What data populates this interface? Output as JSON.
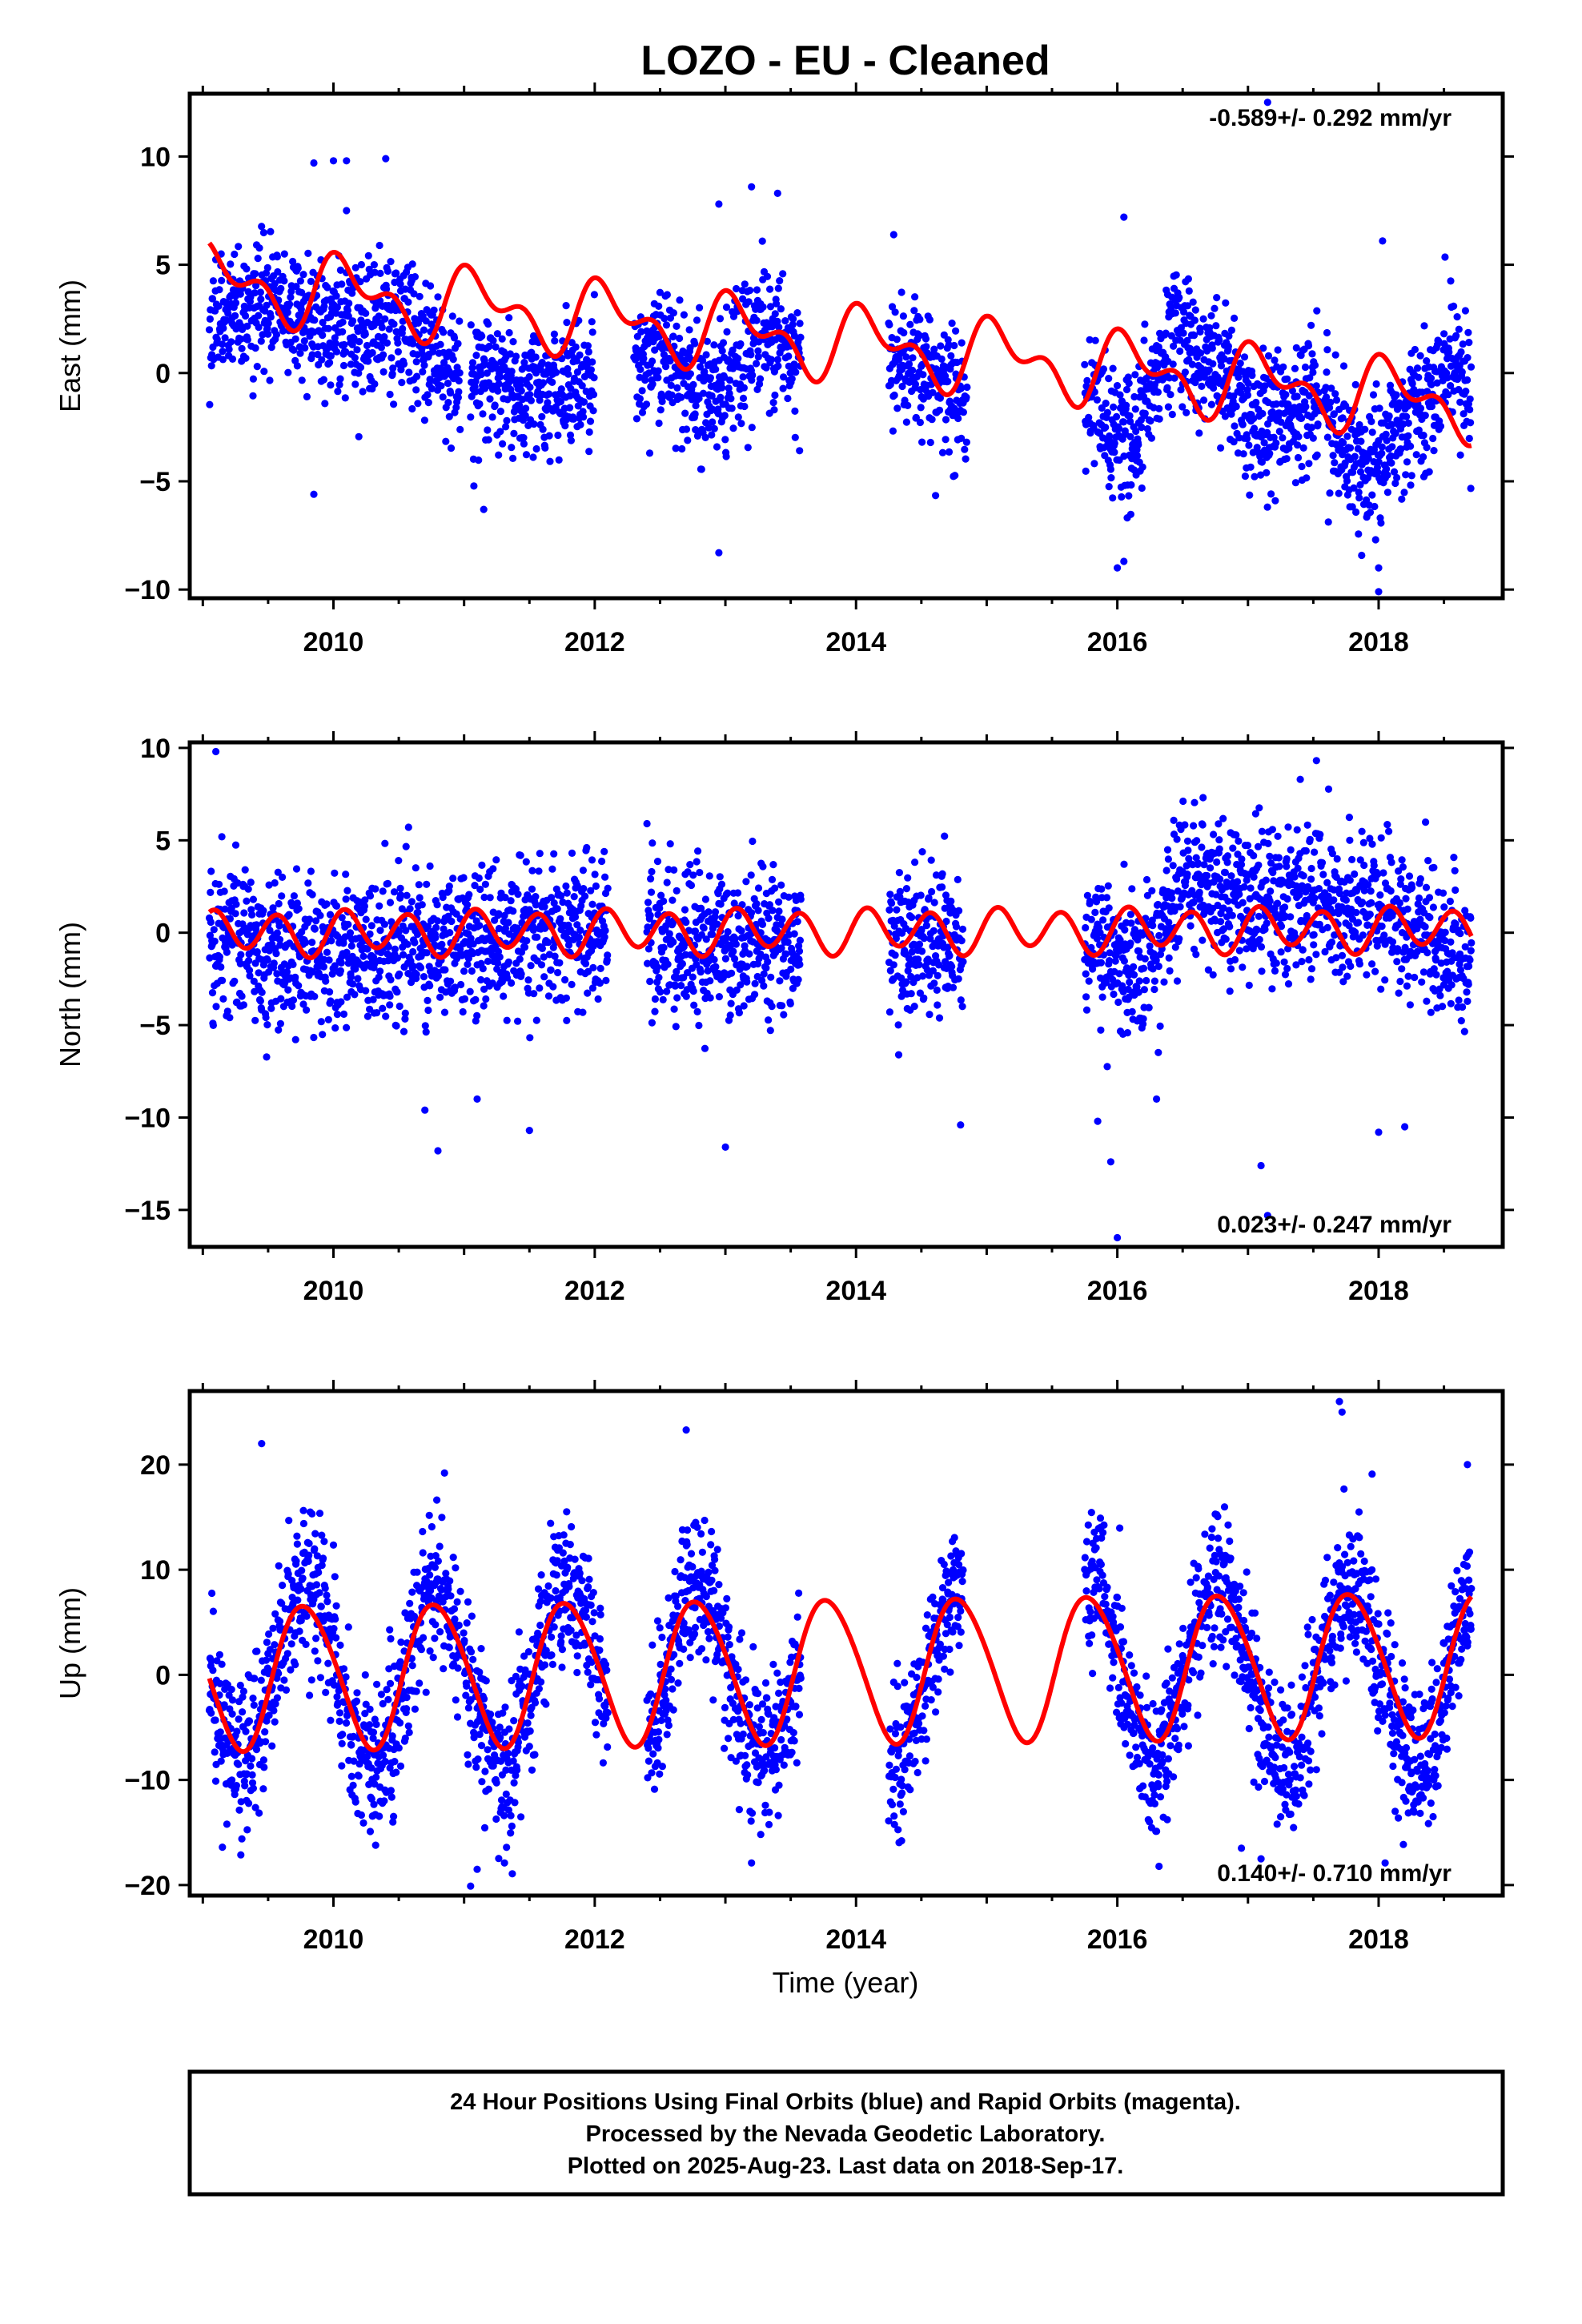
{
  "title": "LOZO  - EU - Cleaned",
  "xlabel": "Time (year)",
  "colors": {
    "points": "#0000ff",
    "fit": "#ff0000",
    "frame": "#000000"
  },
  "footer": {
    "line1": "24 Hour Positions Using Final Orbits (blue) and Rapid Orbits (magenta).",
    "line2": "Processed by the Nevada Geodetic Laboratory.",
    "line3": "Plotted on 2025-Aug-23. Last data on 2018-Sep-17."
  },
  "chart_data": [
    {
      "type": "scatter",
      "component": "east",
      "ylabel": "East (mm)",
      "rate_text": "-0.589+/- 0.292 mm/yr",
      "rate_position": "top-right",
      "xlim": [
        2008.9,
        2018.95
      ],
      "ylim": [
        -10.4,
        12.9
      ],
      "yticks": [
        -10,
        -5,
        0,
        5,
        10
      ],
      "xticks": [
        2010,
        2012,
        2014,
        2016,
        2018
      ],
      "grid": false,
      "data_segments": [
        [
          2009.05,
          2010.97
        ],
        [
          2011.05,
          2012.0
        ],
        [
          2012.3,
          2013.58
        ],
        [
          2014.25,
          2014.85
        ],
        [
          2015.75,
          2017.55
        ],
        [
          2017.58,
          2018.71
        ]
      ],
      "drift_by_year": [
        [
          2009.0,
          2.2
        ],
        [
          2009.5,
          3.5
        ],
        [
          2010.0,
          1.8
        ],
        [
          2010.5,
          2.2
        ],
        [
          2011.0,
          -0.3
        ],
        [
          2011.5,
          -0.5
        ],
        [
          2012.0,
          -0.6
        ],
        [
          2012.5,
          1.0
        ],
        [
          2012.9,
          -1.2
        ],
        [
          2013.3,
          2.2
        ],
        [
          2013.6,
          0.6
        ],
        [
          2014.3,
          0.8
        ],
        [
          2014.8,
          -1.0
        ],
        [
          2015.8,
          -1.5
        ],
        [
          2016.1,
          -3.8
        ],
        [
          2016.4,
          2.0
        ],
        [
          2016.9,
          -0.5
        ],
        [
          2017.1,
          -2.6
        ],
        [
          2017.5,
          -1.0
        ],
        [
          2017.9,
          -4.5
        ],
        [
          2018.2,
          -2.5
        ],
        [
          2018.5,
          0.2
        ],
        [
          2018.71,
          -0.8
        ]
      ],
      "scatter_sd_mm": 1.5,
      "fit_model": {
        "trend_mm_per_yr": -0.589,
        "offset_mm": 1.35,
        "annual_amp": 1.3,
        "annual_phase": 0.9,
        "semiannual_amp": 0.9,
        "semiannual_phase": 1.9
      },
      "fit_span": [
        2009.05,
        2018.71
      ],
      "outliers": [
        [
          2009.85,
          9.7
        ],
        [
          2010.0,
          9.8
        ],
        [
          2010.1,
          9.8
        ],
        [
          2010.4,
          9.9
        ],
        [
          2010.1,
          7.5
        ],
        [
          2012.95,
          7.8
        ],
        [
          2013.2,
          8.6
        ],
        [
          2013.4,
          8.3
        ],
        [
          2016.05,
          7.2
        ],
        [
          2017.15,
          12.5
        ],
        [
          2018.03,
          6.1
        ],
        [
          2009.85,
          -5.6
        ],
        [
          2011.15,
          -6.3
        ],
        [
          2012.95,
          -8.3
        ],
        [
          2016.05,
          -8.7
        ],
        [
          2016.0,
          -9.0
        ],
        [
          2018.0,
          -10.1
        ],
        [
          2018.0,
          -9.0
        ]
      ]
    },
    {
      "type": "scatter",
      "component": "north",
      "ylabel": "North (mm)",
      "rate_text": "0.023+/- 0.247 mm/yr",
      "rate_position": "bottom-right",
      "xlim": [
        2008.9,
        2018.95
      ],
      "ylim": [
        -17.0,
        10.3
      ],
      "yticks": [
        -15,
        -10,
        -5,
        0,
        5,
        10
      ],
      "xticks": [
        2010,
        2012,
        2014,
        2016,
        2018
      ],
      "grid": false,
      "data_segments": [
        [
          2009.05,
          2012.1
        ],
        [
          2012.4,
          2013.58
        ],
        [
          2014.25,
          2014.82
        ],
        [
          2015.75,
          2018.71
        ]
      ],
      "drift_by_year": [
        [
          2009.0,
          -0.5
        ],
        [
          2010.0,
          -1.0
        ],
        [
          2011.0,
          -0.5
        ],
        [
          2012.0,
          0.3
        ],
        [
          2013.0,
          -1.0
        ],
        [
          2014.5,
          -0.5
        ],
        [
          2015.8,
          -1.0
        ],
        [
          2016.2,
          -1.5
        ],
        [
          2016.5,
          3.0
        ],
        [
          2017.0,
          1.5
        ],
        [
          2017.5,
          1.5
        ],
        [
          2018.0,
          1.3
        ],
        [
          2018.5,
          -0.5
        ],
        [
          2018.71,
          -1.0
        ]
      ],
      "scatter_sd_mm": 2.0,
      "fit_model": {
        "trend_mm_per_yr": 0.023,
        "offset_mm": 0.1,
        "annual_amp": 0.3,
        "annual_phase": 0.0,
        "semiannual_amp": 1.1,
        "semiannual_phase": 0.6
      },
      "fit_span": [
        2009.05,
        2018.71
      ],
      "outliers": [
        [
          2009.1,
          9.8
        ],
        [
          2012.4,
          5.9
        ],
        [
          2017.4,
          8.3
        ],
        [
          2010.8,
          -11.8
        ],
        [
          2013.0,
          -11.6
        ],
        [
          2016.0,
          -16.5
        ],
        [
          2017.1,
          -12.6
        ],
        [
          2017.15,
          -15.3
        ],
        [
          2015.85,
          -10.2
        ],
        [
          2015.95,
          -12.4
        ],
        [
          2016.3,
          -9.0
        ],
        [
          2018.0,
          -10.8
        ],
        [
          2018.2,
          -10.5
        ],
        [
          2011.5,
          -10.7
        ],
        [
          2014.8,
          -10.4
        ],
        [
          2010.7,
          -9.6
        ],
        [
          2011.1,
          -9.0
        ]
      ]
    },
    {
      "type": "scatter",
      "component": "up",
      "ylabel": "Up (mm)",
      "rate_text": "0.140+/- 0.710 mm/yr",
      "rate_position": "bottom-right",
      "xlim": [
        2008.9,
        2018.95
      ],
      "ylim": [
        -21.0,
        27.0
      ],
      "yticks": [
        -20,
        -10,
        0,
        10,
        20
      ],
      "xticks": [
        2010,
        2012,
        2014,
        2016,
        2018
      ],
      "grid": false,
      "data_segments": [
        [
          2009.05,
          2012.1
        ],
        [
          2012.4,
          2013.58
        ],
        [
          2014.25,
          2014.82
        ],
        [
          2015.75,
          2018.71
        ]
      ],
      "drift_by_year": [
        [
          2009.0,
          0.0
        ],
        [
          2018.71,
          0.0
        ]
      ],
      "scatter_sd_mm": 3.4,
      "seasonal_amp_mm": 8.5,
      "fit_model": {
        "trend_mm_per_yr": 0.14,
        "offset_mm": 0.5,
        "annual_amp": 6.8,
        "annual_phase": 2.9,
        "semiannual_amp": 0.6,
        "semiannual_phase": 0.0
      },
      "fit_span": [
        2009.05,
        2018.71
      ],
      "outliers": [
        [
          2009.45,
          22.0
        ],
        [
          2012.7,
          23.3
        ],
        [
          2017.7,
          26.0
        ],
        [
          2017.72,
          25.0
        ],
        [
          2018.68,
          20.0
        ],
        [
          2010.85,
          19.2
        ],
        [
          2017.95,
          19.1
        ],
        [
          2011.05,
          -20.1
        ],
        [
          2011.1,
          -18.5
        ],
        [
          2013.2,
          -17.9
        ],
        [
          2016.95,
          -16.5
        ],
        [
          2017.1,
          -17.5
        ],
        [
          2017.25,
          -13.5
        ],
        [
          2018.05,
          -17.9
        ],
        [
          2009.15,
          -16.4
        ]
      ]
    }
  ]
}
